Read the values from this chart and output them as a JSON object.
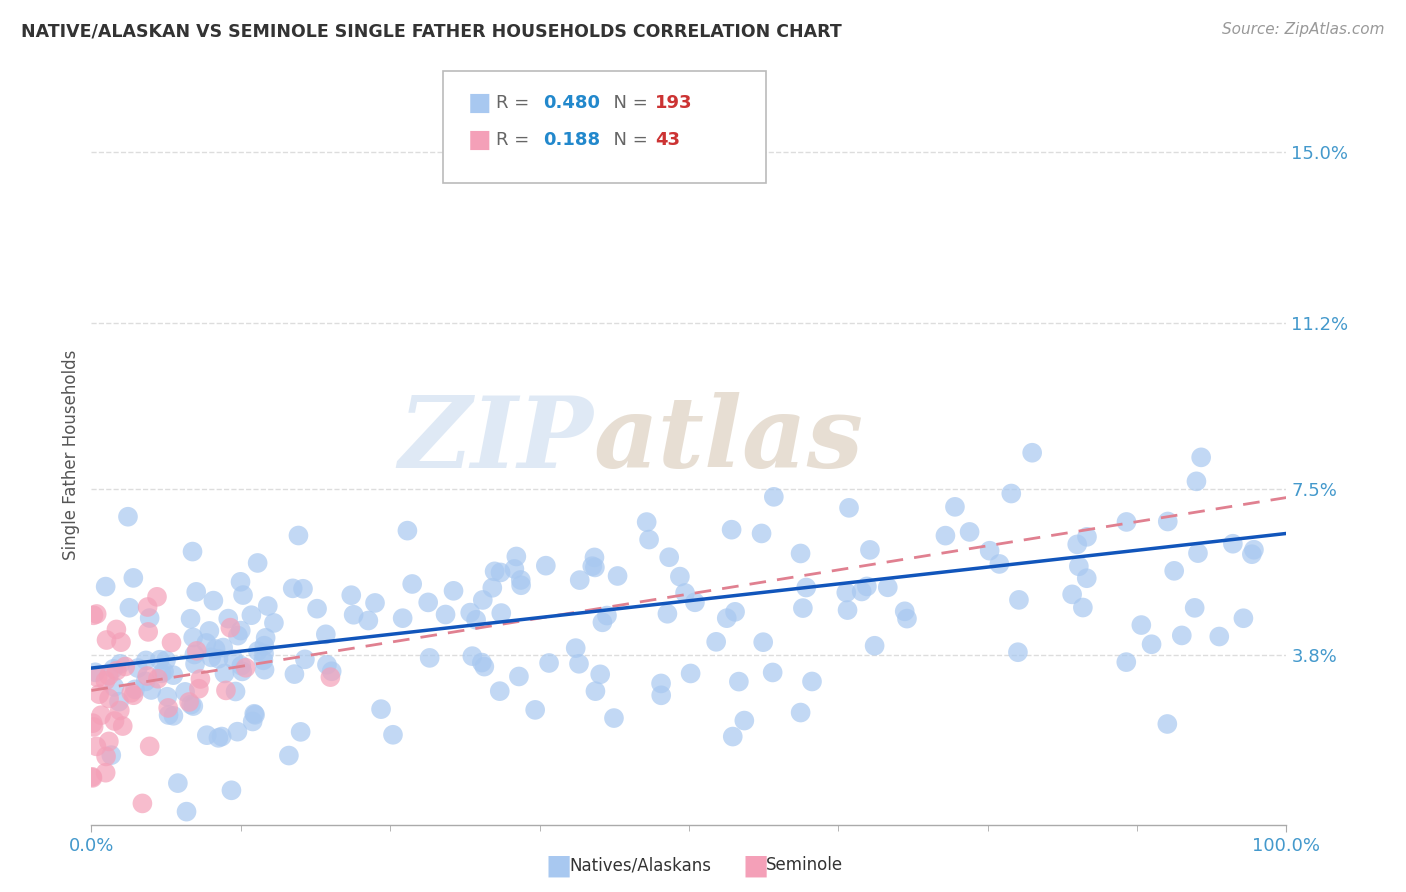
{
  "title": "NATIVE/ALASKAN VS SEMINOLE SINGLE FATHER HOUSEHOLDS CORRELATION CHART",
  "source": "Source: ZipAtlas.com",
  "ylabel": "Single Father Households",
  "xlim": [
    0,
    100
  ],
  "ylim": [
    0,
    16.5
  ],
  "yticks": [
    3.8,
    7.5,
    11.2,
    15.0
  ],
  "ytick_labels": [
    "3.8%",
    "7.5%",
    "11.2%",
    "15.0%"
  ],
  "xtick_labels": [
    "0.0%",
    "100.0%"
  ],
  "blue_R": 0.48,
  "blue_N": 193,
  "pink_R": 0.188,
  "pink_N": 43,
  "blue_color": "#a8c8f0",
  "blue_line_color": "#1155bb",
  "pink_color": "#f4a0b8",
  "pink_line_color": "#e08090",
  "legend_R_color": "#2288cc",
  "legend_N_color": "#cc3333",
  "watermark_color_zip": "#b8cce4",
  "watermark_color_atlas": "#c8b8a8",
  "background_color": "#ffffff",
  "grid_color": "#dddddd",
  "title_color": "#333333",
  "axis_label_color": "#4499cc",
  "tick_label_color": "#4499cc"
}
